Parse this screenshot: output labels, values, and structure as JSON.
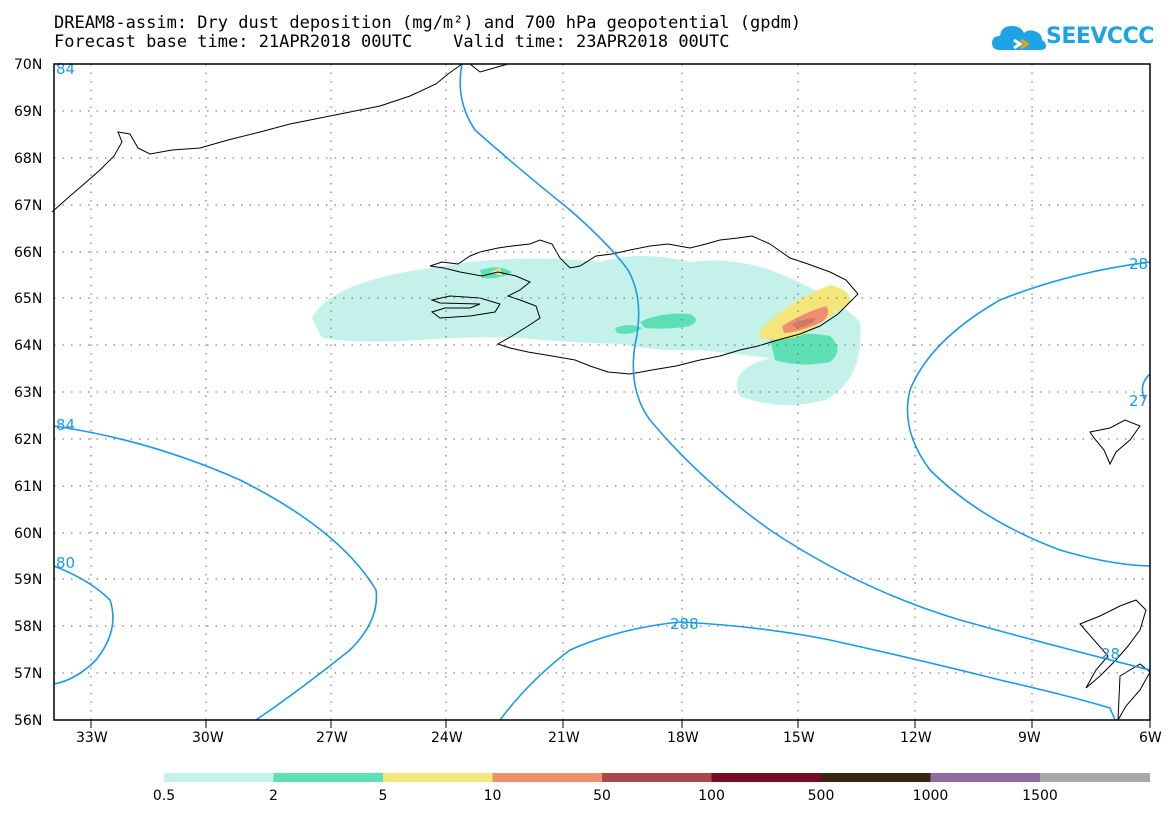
{
  "header": {
    "title_line1": "DREAM8-assim: Dry dust deposition (mg/m²) and 700 hPa geopotential (gpdm)",
    "title_line2": "Forecast base time: 21APR2018 00UTC    Valid time: 23APR2018 00UTC"
  },
  "logo": {
    "text": "SEEVCCC",
    "icon": "cloud-icon",
    "color": "#1ea4e6"
  },
  "map": {
    "lat_labels": [
      "70N",
      "69N",
      "68N",
      "67N",
      "66N",
      "65N",
      "64N",
      "63N",
      "62N",
      "61N",
      "60N",
      "59N",
      "58N",
      "57N",
      "56N"
    ],
    "lon_labels": [
      "33W",
      "30W",
      "27W",
      "24W",
      "21W",
      "18W",
      "15W",
      "12W",
      "9W",
      "6W"
    ],
    "contour_labels": [
      "84",
      "84",
      "80",
      "288",
      "28",
      "27",
      "28"
    ],
    "contour_color": "#1a9be8",
    "coast_color": "#000000",
    "grid": true
  },
  "colorbar": {
    "labels": [
      "0.5",
      "2",
      "5",
      "10",
      "50",
      "100",
      "500",
      "1000",
      "1500"
    ],
    "colors": [
      "#c4f2ea",
      "#5ee0b4",
      "#f4e67a",
      "#ee9070",
      "#a84848",
      "#7a0a28",
      "#3a2410",
      "#936aa0",
      "#a8a8a8"
    ]
  }
}
